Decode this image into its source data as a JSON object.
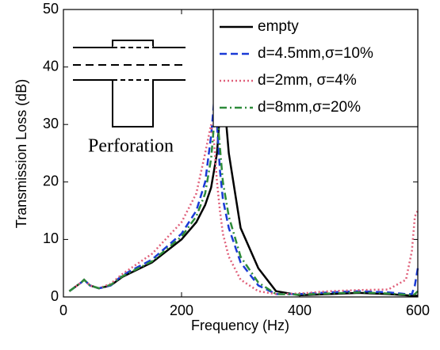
{
  "chart_data": {
    "type": "line",
    "xlabel": "Frequency (Hz)",
    "ylabel": "Transmission Loss (dB)",
    "inset_label": "Perforation",
    "x": [
      10,
      30,
      35,
      45,
      60,
      80,
      100,
      150,
      200,
      225,
      240,
      250,
      255,
      260,
      265,
      270,
      280,
      300,
      330,
      360,
      400,
      450,
      500,
      550,
      580,
      590,
      595,
      600
    ],
    "series": [
      {
        "name": "empty",
        "color": "#000000",
        "linestyle": "solid",
        "values": [
          1,
          2.5,
          3,
          2,
          1.5,
          2,
          3.5,
          6,
          10,
          13,
          16,
          19,
          22,
          25,
          32,
          37,
          25,
          12,
          5,
          1,
          0.3,
          0.5,
          0.7,
          0.5,
          0.3,
          0.2,
          0.2,
          0.2
        ]
      },
      {
        "name": "d=4.5mm,σ=10%",
        "color": "#1a3ad6",
        "linestyle": "dashed",
        "values": [
          1,
          2.5,
          3,
          2,
          1.5,
          2,
          3.8,
          6.5,
          11,
          15,
          20,
          28,
          34,
          30,
          22,
          17,
          12,
          6,
          2,
          0.5,
          0.5,
          0.8,
          1,
          0.8,
          0.5,
          0.5,
          2,
          5
        ]
      },
      {
        "name": "d=2mm, σ=4%",
        "color": "#e0607a",
        "linestyle": "dotted",
        "values": [
          1,
          2.5,
          3,
          2,
          1.5,
          2.3,
          4,
          7.5,
          13,
          18,
          25,
          30,
          27,
          20,
          15,
          11,
          7,
          3,
          1,
          0.5,
          0.6,
          1,
          1.2,
          1.3,
          3,
          8,
          14,
          15
        ]
      },
      {
        "name": "d=8mm,σ=20%",
        "color": "#2e8b3a",
        "linestyle": "dashdot",
        "values": [
          1,
          2.5,
          3,
          2,
          1.5,
          2.1,
          3.6,
          6.2,
          10.5,
          14,
          18,
          24,
          30,
          32,
          26,
          20,
          14,
          7,
          2.5,
          0.5,
          0.4,
          0.6,
          0.8,
          0.6,
          0.4,
          0.3,
          0.5,
          1
        ]
      }
    ],
    "xlim": [
      0,
      600
    ],
    "xticks": [
      0,
      200,
      400,
      600
    ],
    "ylim": [
      0,
      50
    ],
    "yticks": [
      0,
      10,
      20,
      30,
      40,
      50
    ],
    "legend": "upper right"
  }
}
